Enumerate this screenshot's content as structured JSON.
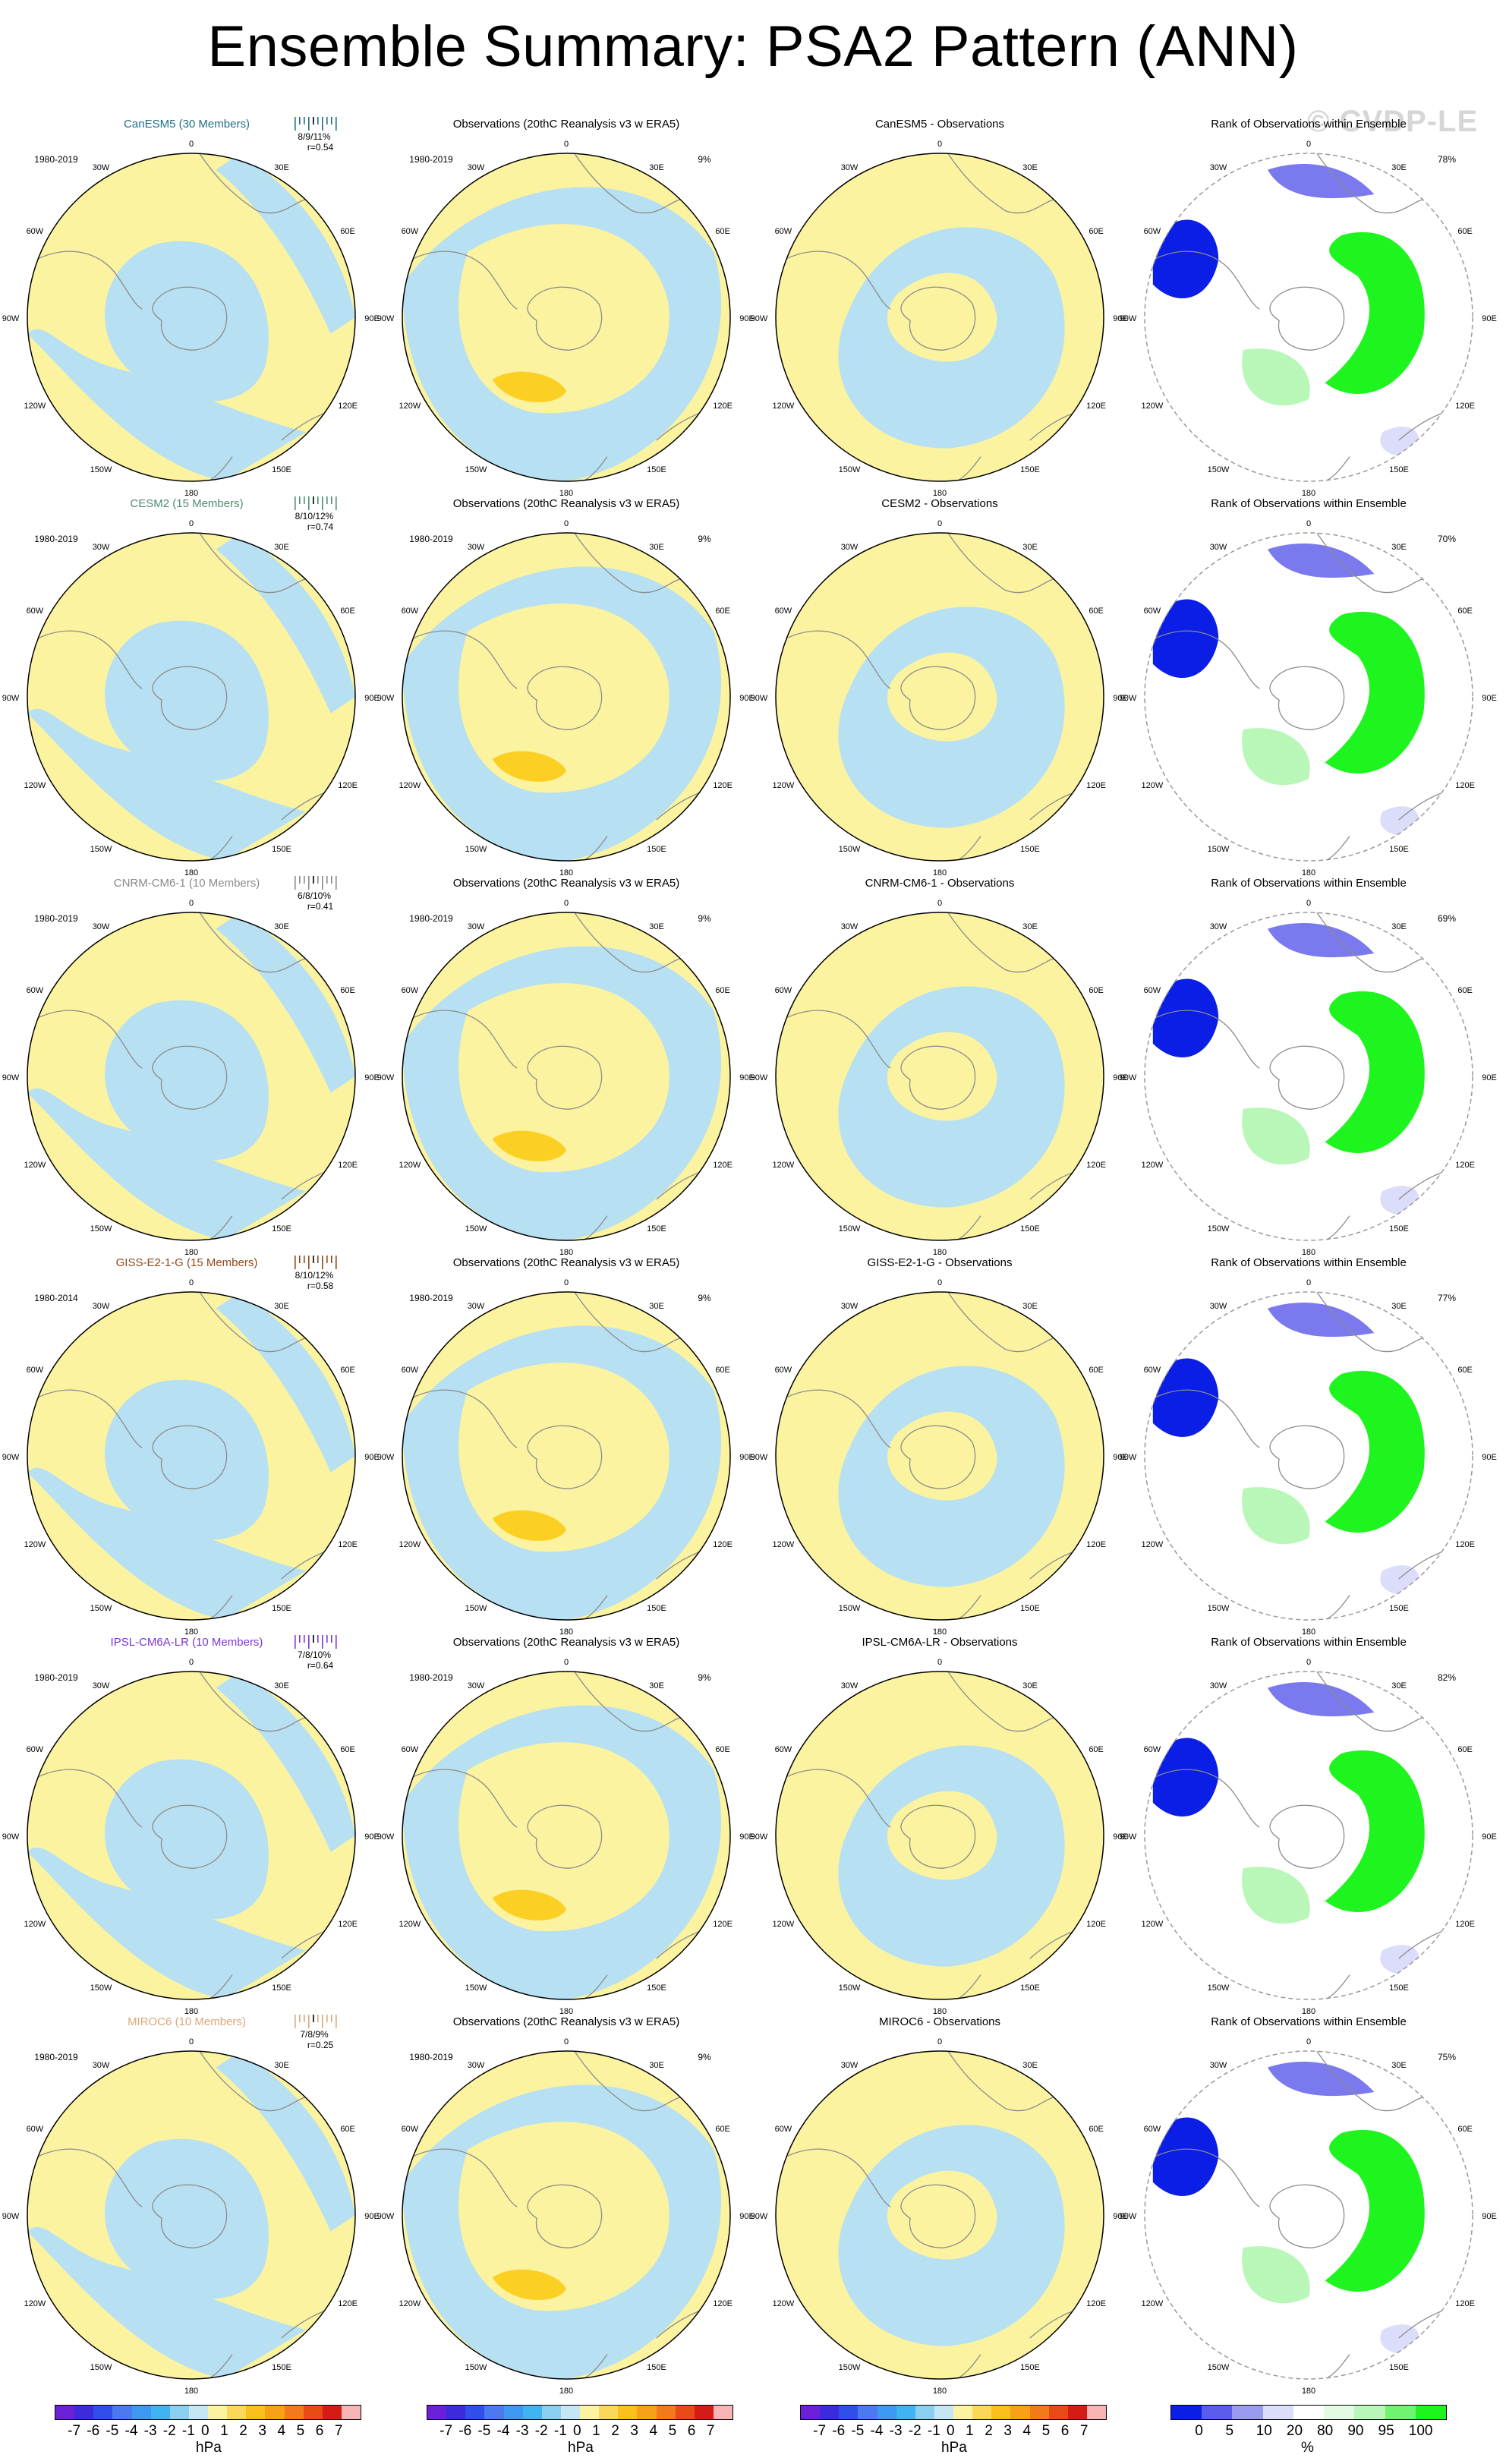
{
  "title": "Ensemble Summary: PSA2 Pattern (ANN)",
  "watermark": "© CVDP-LE",
  "colors": {
    "positive": "#fbf3a0",
    "negative": "#b7e0f2",
    "pos_strong": "#fbd023",
    "neg_strong": "#79c3ea",
    "rank_low": "#0b1ee6",
    "rank_low2": "#7a7aee",
    "rank_low3": "#dcdcfb",
    "rank_high": "#1ef51e",
    "rank_high2": "#b8f7b8",
    "rank_high3": "#e3fbe3",
    "land": "#8c8c8c"
  },
  "longitude_labels": [
    "0",
    "30E",
    "60E",
    "90E",
    "120E",
    "150E",
    "180",
    "150W",
    "120W",
    "90W",
    "60W",
    "30W"
  ],
  "obs_title": "Observations (20thC Reanalysis v3 w ERA5)",
  "obs_period": "1980-2019",
  "obs_pct": "9%",
  "rank_title": "Rank of Observations within Ensemble",
  "models": [
    {
      "name": "CanESM5 (30 Members)",
      "color": "#1e6e8a",
      "period": "1980-2019",
      "pcts": "8/9/11%",
      "r": "r=0.54",
      "diff_title": "CanESM5 - Observations",
      "rank_pct": "78%"
    },
    {
      "name": "CESM2 (15 Members)",
      "color": "#4c8e6e",
      "period": "1980-2019",
      "pcts": "8/10/12%",
      "r": "r=0.74",
      "diff_title": "CESM2 - Observations",
      "rank_pct": "70%"
    },
    {
      "name": "CNRM-CM6-1 (10 Members)",
      "color": "#8a8a8a",
      "period": "1980-2019",
      "pcts": "6/8/10%",
      "r": "r=0.41",
      "diff_title": "CNRM-CM6-1 - Observations",
      "rank_pct": "69%"
    },
    {
      "name": "GISS-E2-1-G (15 Members)",
      "color": "#8e4a1e",
      "period": "1980-2014",
      "pcts": "8/10/12%",
      "r": "r=0.58",
      "diff_title": "GISS-E2-1-G - Observations",
      "rank_pct": "77%"
    },
    {
      "name": "IPSL-CM6A-LR (10 Members)",
      "color": "#7a38d6",
      "period": "1980-2019",
      "pcts": "7/8/10%",
      "r": "r=0.64",
      "diff_title": "IPSL-CM6A-LR - Observations",
      "rank_pct": "82%"
    },
    {
      "name": "MIROC6 (10 Members)",
      "color": "#d8a87a",
      "period": "1980-2019",
      "pcts": "7/8/9%",
      "r": "r=0.25",
      "diff_title": "MIROC6 - Observations",
      "rank_pct": "75%"
    }
  ],
  "colorbar_hpa": {
    "labels": [
      "-7",
      "-6",
      "-5",
      "-4",
      "-3",
      "-2",
      "-1",
      "0",
      "1",
      "2",
      "3",
      "4",
      "5",
      "6",
      "7"
    ],
    "unit": "hPa",
    "colors": [
      "#6b1fd6",
      "#3b2bdb",
      "#2f4fe8",
      "#4a79f0",
      "#3c98f0",
      "#40b4f2",
      "#89cfef",
      "#c4e6f5",
      "#fbf3a0",
      "#fbd85a",
      "#fbc01e",
      "#f8a018",
      "#f27a1a",
      "#e84a16",
      "#d41c16",
      "#f8b4b4"
    ]
  },
  "colorbar_rank": {
    "labels": [
      "0",
      "5",
      "10",
      "20",
      "80",
      "90",
      "95",
      "100"
    ],
    "unit": "%",
    "colors": [
      "#0b1ee6",
      "#5b5bec",
      "#9a9af0",
      "#dcdcfb",
      "#ffffff",
      "#e3fbe3",
      "#b8f7b8",
      "#6ef46e",
      "#1ef51e"
    ]
  }
}
